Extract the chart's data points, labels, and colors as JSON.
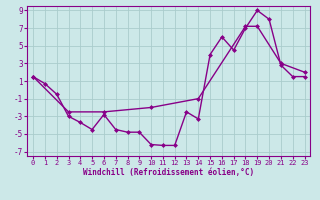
{
  "xlabel": "Windchill (Refroidissement éolien,°C)",
  "xlim": [
    -0.5,
    23.5
  ],
  "ylim": [
    -7.5,
    9.5
  ],
  "xticks": [
    0,
    1,
    2,
    3,
    4,
    5,
    6,
    7,
    8,
    9,
    10,
    11,
    12,
    13,
    14,
    15,
    16,
    17,
    18,
    19,
    20,
    21,
    22,
    23
  ],
  "yticks": [
    -7,
    -5,
    -3,
    -1,
    1,
    3,
    5,
    7,
    9
  ],
  "bg_color": "#cce8e8",
  "grid_color": "#aacccc",
  "line_color": "#880088",
  "line1_x": [
    0,
    1,
    2,
    3,
    4,
    5,
    6,
    7,
    8,
    9,
    10,
    11,
    12,
    13,
    14,
    15,
    16,
    17,
    18,
    19,
    20,
    21,
    22,
    23
  ],
  "line1_y": [
    1.5,
    0.7,
    -0.5,
    -3.0,
    -3.7,
    -4.5,
    -2.8,
    -4.5,
    -4.8,
    -4.8,
    -6.2,
    -6.3,
    -6.3,
    -2.5,
    -3.3,
    4.0,
    6.0,
    4.5,
    7.0,
    9.0,
    8.0,
    2.8,
    1.5,
    1.5
  ],
  "line2_x": [
    0,
    3,
    6,
    10,
    14,
    18,
    19,
    21,
    23
  ],
  "line2_y": [
    1.5,
    -2.5,
    -2.5,
    -2.0,
    -1.0,
    7.2,
    7.2,
    3.0,
    2.0
  ],
  "marker": "D",
  "marker_size": 2.5,
  "line_width": 1.0
}
